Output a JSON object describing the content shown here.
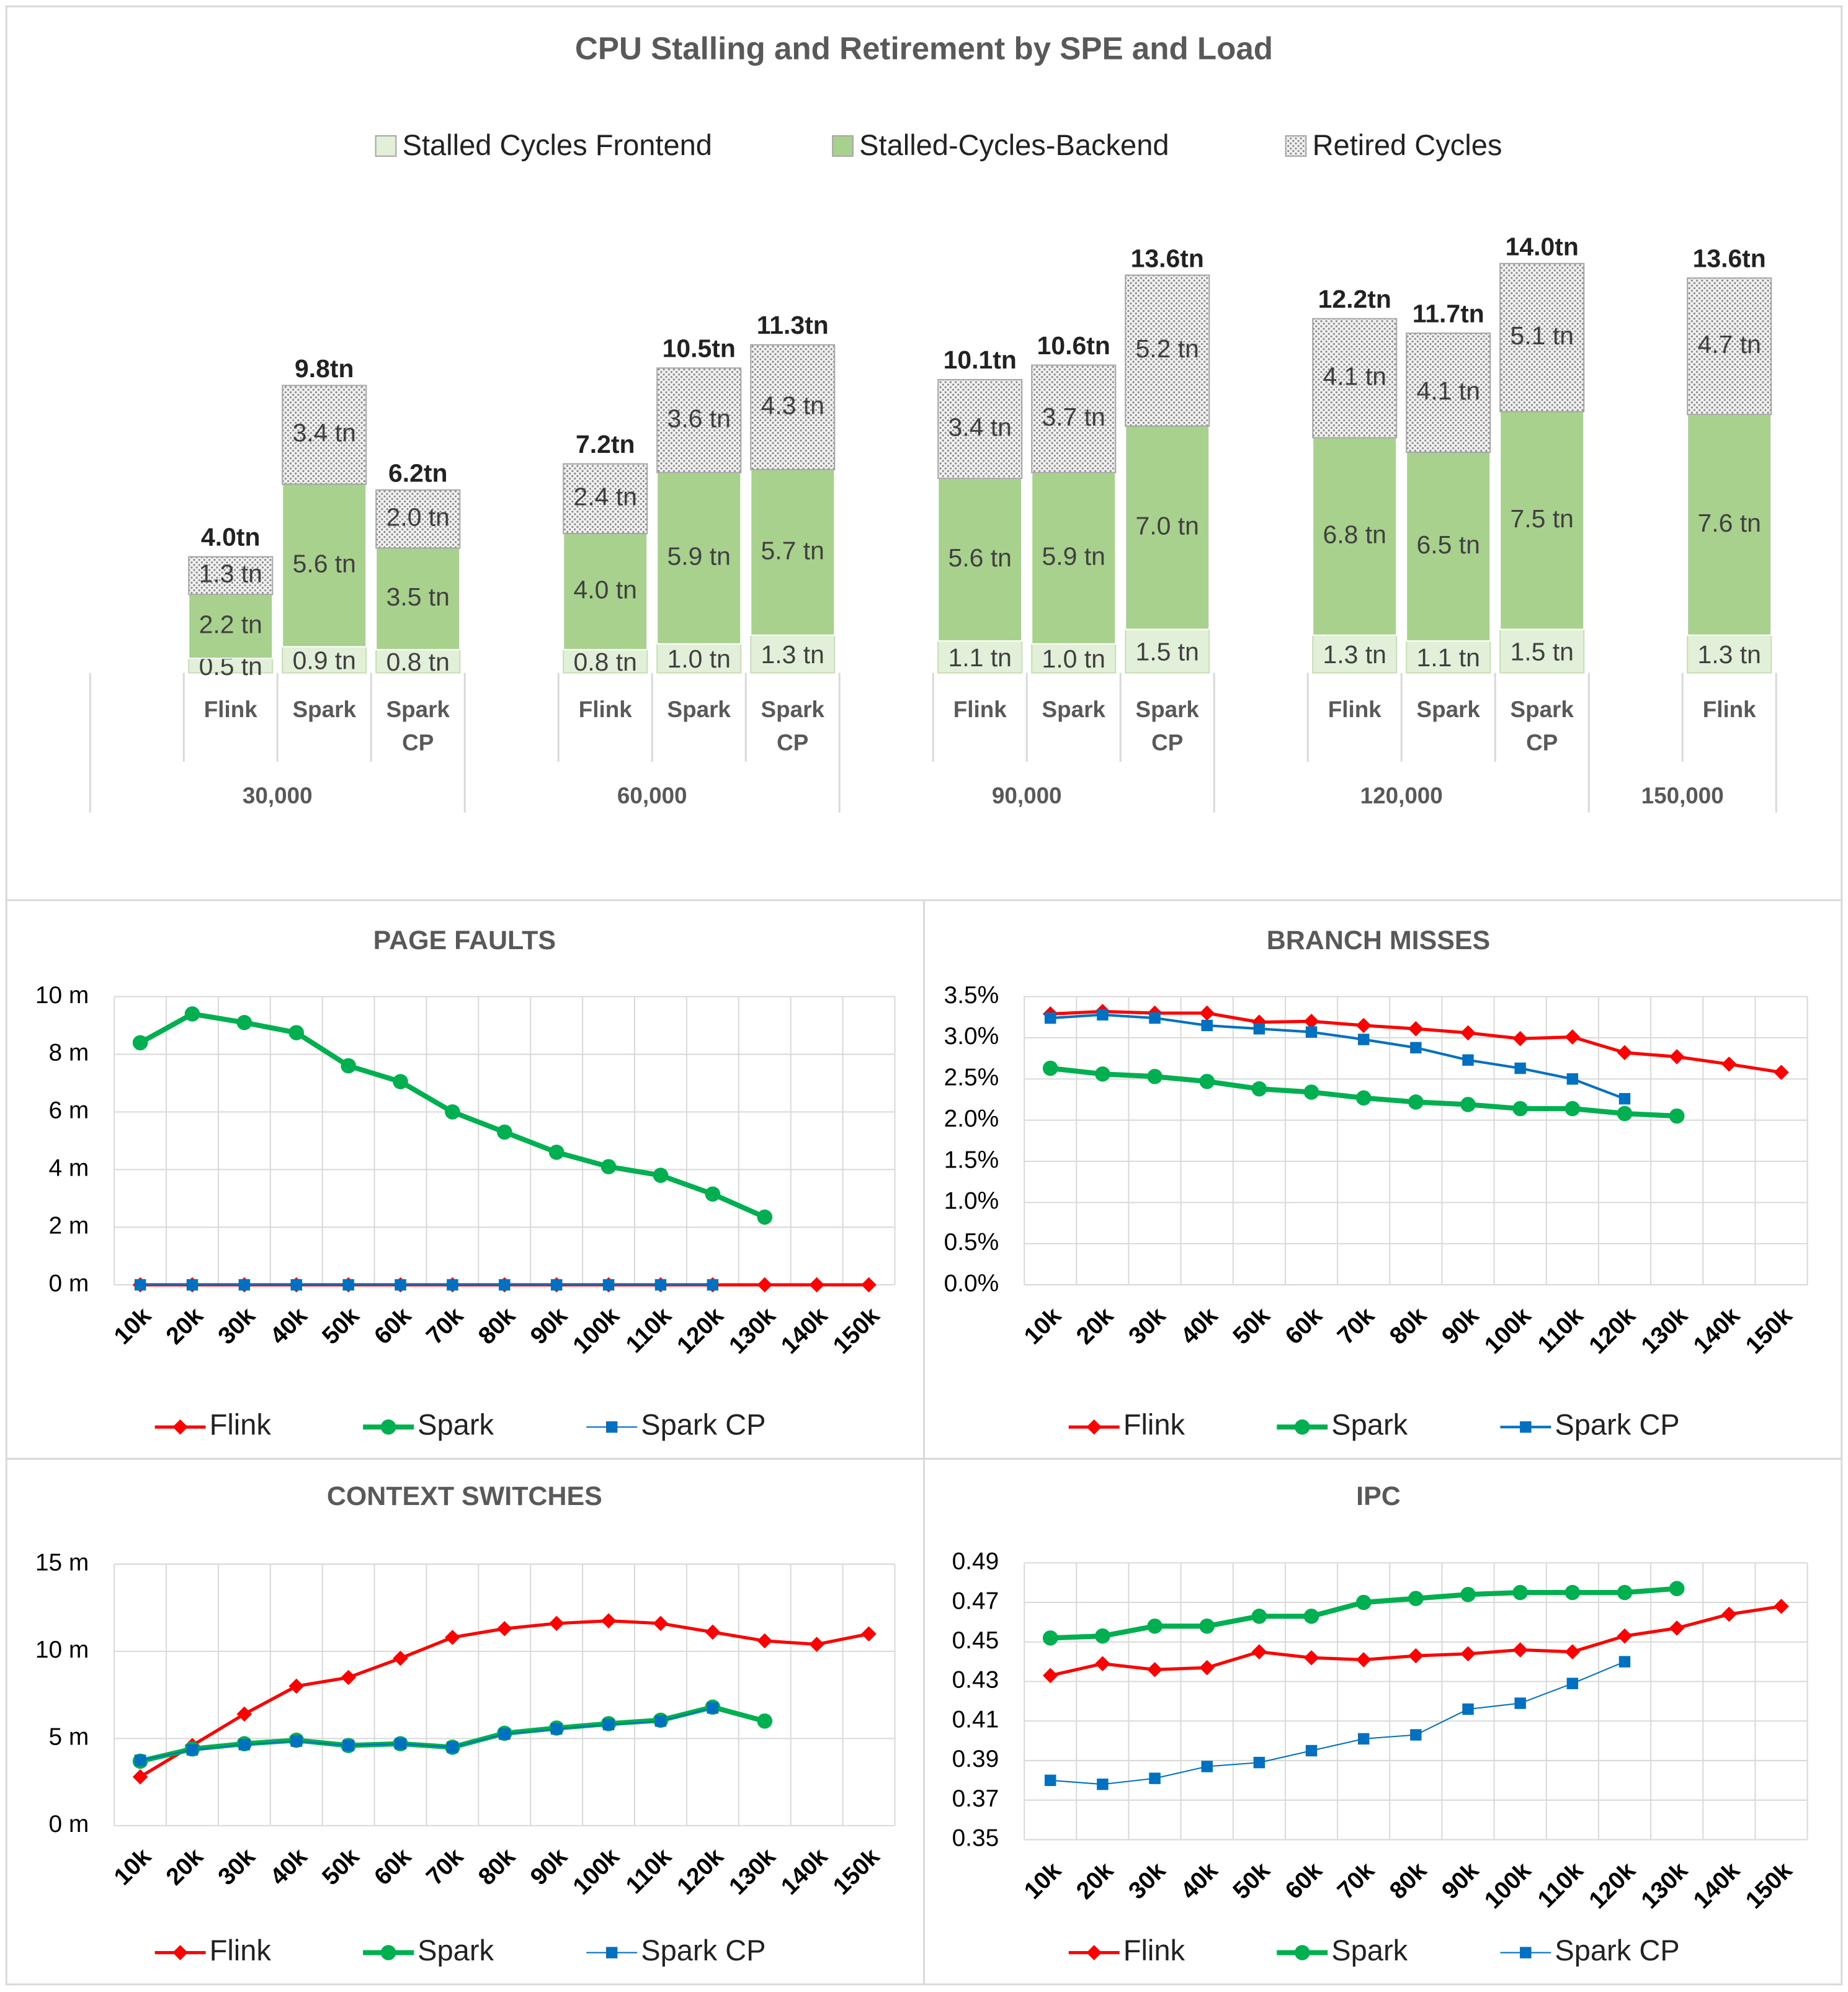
{
  "chart_data": [
    {
      "type": "stacked_bar",
      "title": "CPU Stalling and Retirement by SPE and Load",
      "groups": [
        {
          "name": "30,000",
          "categories": [
            null,
            "Flink",
            "Spark",
            "Spark CP"
          ]
        },
        {
          "name": "60,000",
          "categories": [
            null,
            "Flink",
            "Spark",
            "Spark CP"
          ]
        },
        {
          "name": "90,000",
          "categories": [
            null,
            "Flink",
            "Spark",
            "Spark CP"
          ]
        },
        {
          "name": "120,000",
          "categories": [
            null,
            "Flink",
            "Spark",
            "Spark CP"
          ]
        },
        {
          "name": "150,000",
          "categories": [
            null,
            "Flink"
          ]
        }
      ],
      "series": [
        {
          "name": "Stalled Cycles Frontend",
          "color": "#e2f0d9",
          "values": [
            null,
            0.5,
            0.9,
            0.8,
            null,
            0.8,
            1.0,
            1.3,
            null,
            1.1,
            1.0,
            1.5,
            null,
            1.3,
            1.1,
            1.5,
            null,
            1.3
          ],
          "value_labels": [
            null,
            "0.5 tn",
            "0.9 tn",
            "0.8 tn",
            null,
            "0.8 tn",
            "1.0 tn",
            "1.3 tn",
            null,
            "1.1 tn",
            "1.0 tn",
            "1.5 tn",
            null,
            "1.3 tn",
            "1.1 tn",
            "1.5 tn",
            null,
            "1.3 tn"
          ]
        },
        {
          "name": "Stalled-Cycles-Backend",
          "color": "#a9d18e",
          "values": [
            null,
            2.2,
            5.6,
            3.5,
            null,
            4.0,
            5.9,
            5.7,
            null,
            5.6,
            5.9,
            7.0,
            null,
            6.8,
            6.5,
            7.5,
            null,
            7.6
          ],
          "value_labels": [
            null,
            "2.2 tn",
            "5.6 tn",
            "3.5 tn",
            null,
            "4.0 tn",
            "5.9 tn",
            "5.7 tn",
            null,
            "5.6 tn",
            "5.9 tn",
            "7.0 tn",
            null,
            "6.8 tn",
            "6.5 tn",
            "7.5 tn",
            null,
            "7.6 tn"
          ]
        },
        {
          "name": "Retired Cycles",
          "color": "#d9d9d9",
          "pattern": "dotted",
          "values": [
            null,
            1.3,
            3.4,
            2.0,
            null,
            2.4,
            3.6,
            4.3,
            null,
            3.4,
            3.7,
            5.2,
            null,
            4.1,
            4.1,
            5.1,
            null,
            4.7
          ],
          "value_labels": [
            null,
            "1.3 tn",
            "3.4 tn",
            "2.0 tn",
            null,
            "2.4 tn",
            "3.6 tn",
            "4.3 tn",
            null,
            "3.4 tn",
            "3.7 tn",
            "5.2 tn",
            null,
            "4.1 tn",
            "4.1 tn",
            "5.1 tn",
            null,
            "4.7 tn"
          ]
        }
      ],
      "totals": {
        "values": [
          null,
          4.0,
          9.8,
          6.2,
          null,
          7.2,
          10.5,
          11.3,
          null,
          10.1,
          10.6,
          13.6,
          null,
          12.2,
          11.7,
          14.0,
          null,
          13.6
        ],
        "value_labels": [
          null,
          "4.0tn",
          "9.8tn",
          "6.2tn",
          null,
          "7.2tn",
          "10.5tn",
          "11.3tn",
          null,
          "10.1tn",
          "10.6tn",
          "13.6tn",
          null,
          "12.2tn",
          "11.7tn",
          "14.0tn",
          null,
          "13.6tn"
        ]
      },
      "ylim": [
        0,
        15
      ],
      "legend": "top"
    },
    {
      "type": "line",
      "title": "PAGE FAULTS",
      "categories": [
        "10k",
        "20k",
        "30k",
        "40k",
        "50k",
        "60k",
        "70k",
        "80k",
        "90k",
        "100k",
        "110k",
        "120k",
        "130k",
        "140k",
        "150k"
      ],
      "ylim": [
        0,
        10
      ],
      "yticks": [
        {
          "value": 0,
          "label": "0 m"
        },
        {
          "value": 2,
          "label": "2 m"
        },
        {
          "value": 4,
          "label": "4 m"
        },
        {
          "value": 6,
          "label": "6 m"
        },
        {
          "value": 8,
          "label": "8 m"
        },
        {
          "value": 10,
          "label": "10 m"
        }
      ],
      "grid": true,
      "legend": "bottom",
      "series": [
        {
          "name": "Flink",
          "color": "#ff0000",
          "marker": "diamond",
          "line_width": 2.5,
          "values": [
            0,
            0,
            0,
            0,
            0,
            0,
            0,
            0,
            0,
            0,
            0,
            0,
            0,
            0,
            0
          ]
        },
        {
          "name": "Spark",
          "color": "#00b050",
          "marker": "circle",
          "line_width": 4,
          "values": [
            8.4,
            9.4,
            9.1,
            8.75,
            7.6,
            7.05,
            6.0,
            5.3,
            4.6,
            4.1,
            3.8,
            3.15,
            2.35,
            null,
            null
          ]
        },
        {
          "name": "Spark CP",
          "color": "#0070c0",
          "marker": "square",
          "line_width": 1,
          "values": [
            0,
            0,
            0,
            0,
            0,
            0,
            0,
            0,
            0,
            0,
            0,
            0,
            null,
            null,
            null
          ]
        }
      ]
    },
    {
      "type": "line",
      "title": "BRANCH MISSES",
      "categories": [
        "10k",
        "20k",
        "30k",
        "40k",
        "50k",
        "60k",
        "70k",
        "80k",
        "90k",
        "100k",
        "110k",
        "120k",
        "130k",
        "140k",
        "150k"
      ],
      "ylim": [
        0,
        3.5
      ],
      "yticks": [
        {
          "value": 0,
          "label": "0.0%"
        },
        {
          "value": 0.5,
          "label": "0.5%"
        },
        {
          "value": 1,
          "label": "1.0%"
        },
        {
          "value": 1.5,
          "label": "1.5%"
        },
        {
          "value": 2,
          "label": "2.0%"
        },
        {
          "value": 2.5,
          "label": "2.5%"
        },
        {
          "value": 3,
          "label": "3.0%"
        },
        {
          "value": 3.5,
          "label": "3.5%"
        }
      ],
      "grid": true,
      "legend": "bottom",
      "series": [
        {
          "name": "Flink",
          "color": "#ff0000",
          "marker": "diamond",
          "line_width": 2.5,
          "values": [
            3.29,
            3.32,
            3.3,
            3.3,
            3.19,
            3.2,
            3.15,
            3.11,
            3.06,
            2.99,
            3.01,
            2.82,
            2.77,
            2.68,
            2.58
          ]
        },
        {
          "name": "Spark",
          "color": "#00b050",
          "marker": "circle",
          "line_width": 4,
          "values": [
            2.63,
            2.56,
            2.53,
            2.47,
            2.38,
            2.34,
            2.27,
            2.22,
            2.19,
            2.14,
            2.14,
            2.08,
            2.05,
            null,
            null
          ]
        },
        {
          "name": "Spark CP",
          "color": "#0070c0",
          "marker": "square",
          "line_width": 2,
          "values": [
            3.24,
            3.28,
            3.24,
            3.15,
            3.11,
            3.07,
            2.98,
            2.88,
            2.73,
            2.63,
            2.5,
            2.26,
            null,
            null,
            null
          ]
        }
      ]
    },
    {
      "type": "line",
      "title": "CONTEXT SWITCHES",
      "categories": [
        "10k",
        "20k",
        "30k",
        "40k",
        "50k",
        "60k",
        "70k",
        "80k",
        "90k",
        "100k",
        "110k",
        "120k",
        "130k",
        "140k",
        "150k"
      ],
      "ylim": [
        0,
        15
      ],
      "yticks": [
        {
          "value": 0,
          "label": "0 m"
        },
        {
          "value": 5,
          "label": "5 m"
        },
        {
          "value": 10,
          "label": "10 m"
        },
        {
          "value": 15,
          "label": "15 m"
        }
      ],
      "grid": true,
      "legend": "bottom",
      "series": [
        {
          "name": "Flink",
          "color": "#ff0000",
          "marker": "diamond",
          "line_width": 2.5,
          "values": [
            2.8,
            4.6,
            6.4,
            8.0,
            8.5,
            9.6,
            10.8,
            11.3,
            11.6,
            11.75,
            11.6,
            11.1,
            10.6,
            10.4,
            11.0
          ]
        },
        {
          "name": "Spark",
          "color": "#00b050",
          "marker": "circle",
          "line_width": 4,
          "values": [
            3.7,
            4.4,
            4.7,
            4.9,
            4.6,
            4.7,
            4.5,
            5.3,
            5.6,
            5.85,
            6.05,
            6.8,
            6.0,
            null,
            null
          ]
        },
        {
          "name": "Spark CP",
          "color": "#0070c0",
          "marker": "square",
          "line_width": 1,
          "values": [
            3.75,
            4.35,
            4.65,
            4.85,
            4.6,
            4.7,
            4.5,
            5.25,
            5.55,
            5.8,
            6.0,
            6.75,
            null,
            null,
            null
          ]
        }
      ]
    },
    {
      "type": "line",
      "title": "IPC",
      "categories": [
        "10k",
        "20k",
        "30k",
        "40k",
        "50k",
        "60k",
        "70k",
        "80k",
        "90k",
        "100k",
        "110k",
        "120k",
        "130k",
        "140k",
        "150k"
      ],
      "ylim": [
        0.35,
        0.49
      ],
      "yticks": [
        0.35,
        0.37,
        0.39,
        0.41,
        0.43,
        0.45,
        0.47,
        0.49
      ],
      "grid": true,
      "legend": "bottom",
      "series": [
        {
          "name": "Flink",
          "color": "#ff0000",
          "marker": "diamond",
          "line_width": 2.5,
          "values": [
            0.433,
            0.439,
            0.436,
            0.437,
            0.445,
            0.442,
            0.441,
            0.443,
            0.444,
            0.446,
            0.445,
            0.453,
            0.457,
            0.464,
            0.468
          ]
        },
        {
          "name": "Spark",
          "color": "#00b050",
          "marker": "circle",
          "line_width": 4,
          "values": [
            0.452,
            0.453,
            0.458,
            0.458,
            0.463,
            0.463,
            0.47,
            0.472,
            0.474,
            0.475,
            0.475,
            0.475,
            0.477,
            null,
            null
          ]
        },
        {
          "name": "Spark CP",
          "color": "#0070c0",
          "marker": "square",
          "line_width": 1,
          "values": [
            0.38,
            0.378,
            0.381,
            0.387,
            0.389,
            0.395,
            0.401,
            0.403,
            0.416,
            0.419,
            0.429,
            0.44,
            null,
            null,
            null
          ]
        }
      ]
    }
  ]
}
